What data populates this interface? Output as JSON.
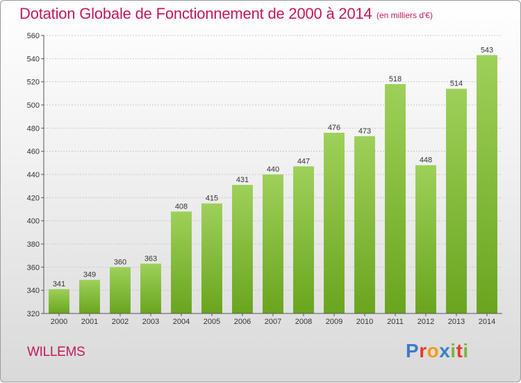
{
  "title": "Dotation Globale de Fonctionnement de 2000 à 2014",
  "subtitle": "(en milliers d'€)",
  "commune": "WILLEMS",
  "logo": {
    "text": "Proxiti",
    "letters": [
      "P",
      "r",
      "o",
      "x",
      "i",
      "t",
      "i"
    ],
    "colors": [
      "#3a7dc9",
      "#e23b2e",
      "#f39c12",
      "#3a7dc9",
      "#7cb342",
      "#e23b2e",
      "#7cb342"
    ]
  },
  "colors": {
    "bar_top": "#9ed05a",
    "bar_bottom": "#6aa51e",
    "accent": "#c2185b"
  },
  "chart_data": {
    "type": "bar",
    "categories": [
      "2000",
      "2001",
      "2002",
      "2003",
      "2004",
      "2005",
      "2006",
      "2007",
      "2008",
      "2009",
      "2010",
      "2011",
      "2012",
      "2013",
      "2014"
    ],
    "values": [
      341,
      349,
      360,
      363,
      408,
      415,
      431,
      440,
      447,
      476,
      473,
      518,
      448,
      514,
      543
    ],
    "ylim": [
      320,
      560
    ],
    "yticks": [
      320,
      340,
      360,
      380,
      400,
      420,
      440,
      460,
      480,
      500,
      520,
      540,
      560
    ],
    "grid": true,
    "xlabel": "",
    "ylabel": ""
  }
}
